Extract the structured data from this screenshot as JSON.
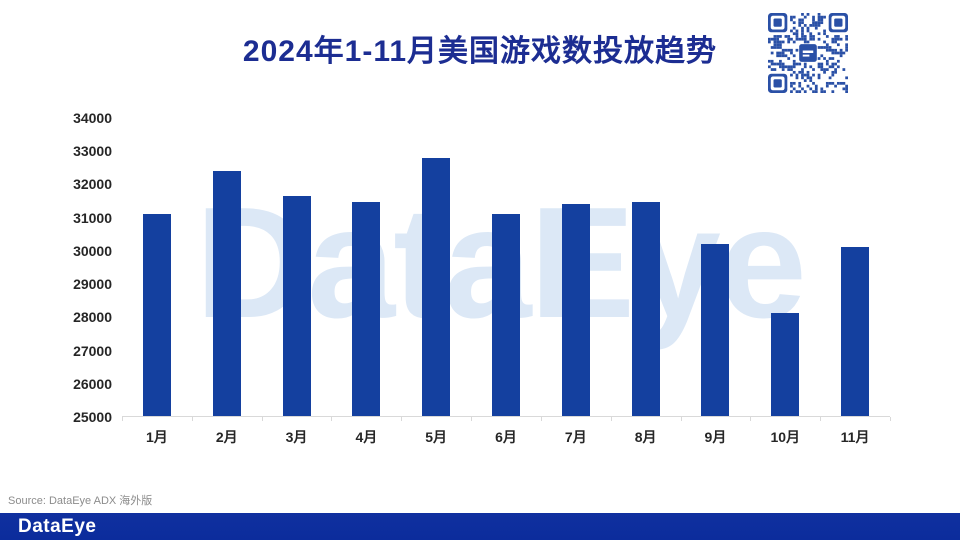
{
  "title": "2024年1-11月美国游戏数投放趋势",
  "watermark": "DataEye",
  "source_note": "Source: DataEye ADX 海外版",
  "footer": {
    "logo_text": "DataEye"
  },
  "colors": {
    "bar": "#14409F",
    "title_text": "#1C2D92",
    "axis_text": "#262626",
    "axis_line": "#D9D9D9",
    "watermark": "#DCE8F6",
    "source_text": "#8C8C8C",
    "footer_bg": "#0B2C9C",
    "footer_text": "#FFFFFF",
    "qr": "#2A50A6"
  },
  "chart_data": {
    "type": "bar",
    "title": "2024年1-11月美国游戏数投放趋势",
    "categories": [
      "1月",
      "2月",
      "3月",
      "4月",
      "5月",
      "6月",
      "7月",
      "8月",
      "9月",
      "10月",
      "11月"
    ],
    "values": [
      31100,
      32400,
      31650,
      31450,
      32800,
      31100,
      31400,
      31450,
      30200,
      28100,
      30100
    ],
    "xlabel": "",
    "ylabel": "",
    "ylim": [
      25000,
      34000
    ],
    "yticks": [
      25000,
      26000,
      27000,
      28000,
      29000,
      30000,
      31000,
      32000,
      33000,
      34000
    ],
    "grid": false,
    "legend": null
  }
}
